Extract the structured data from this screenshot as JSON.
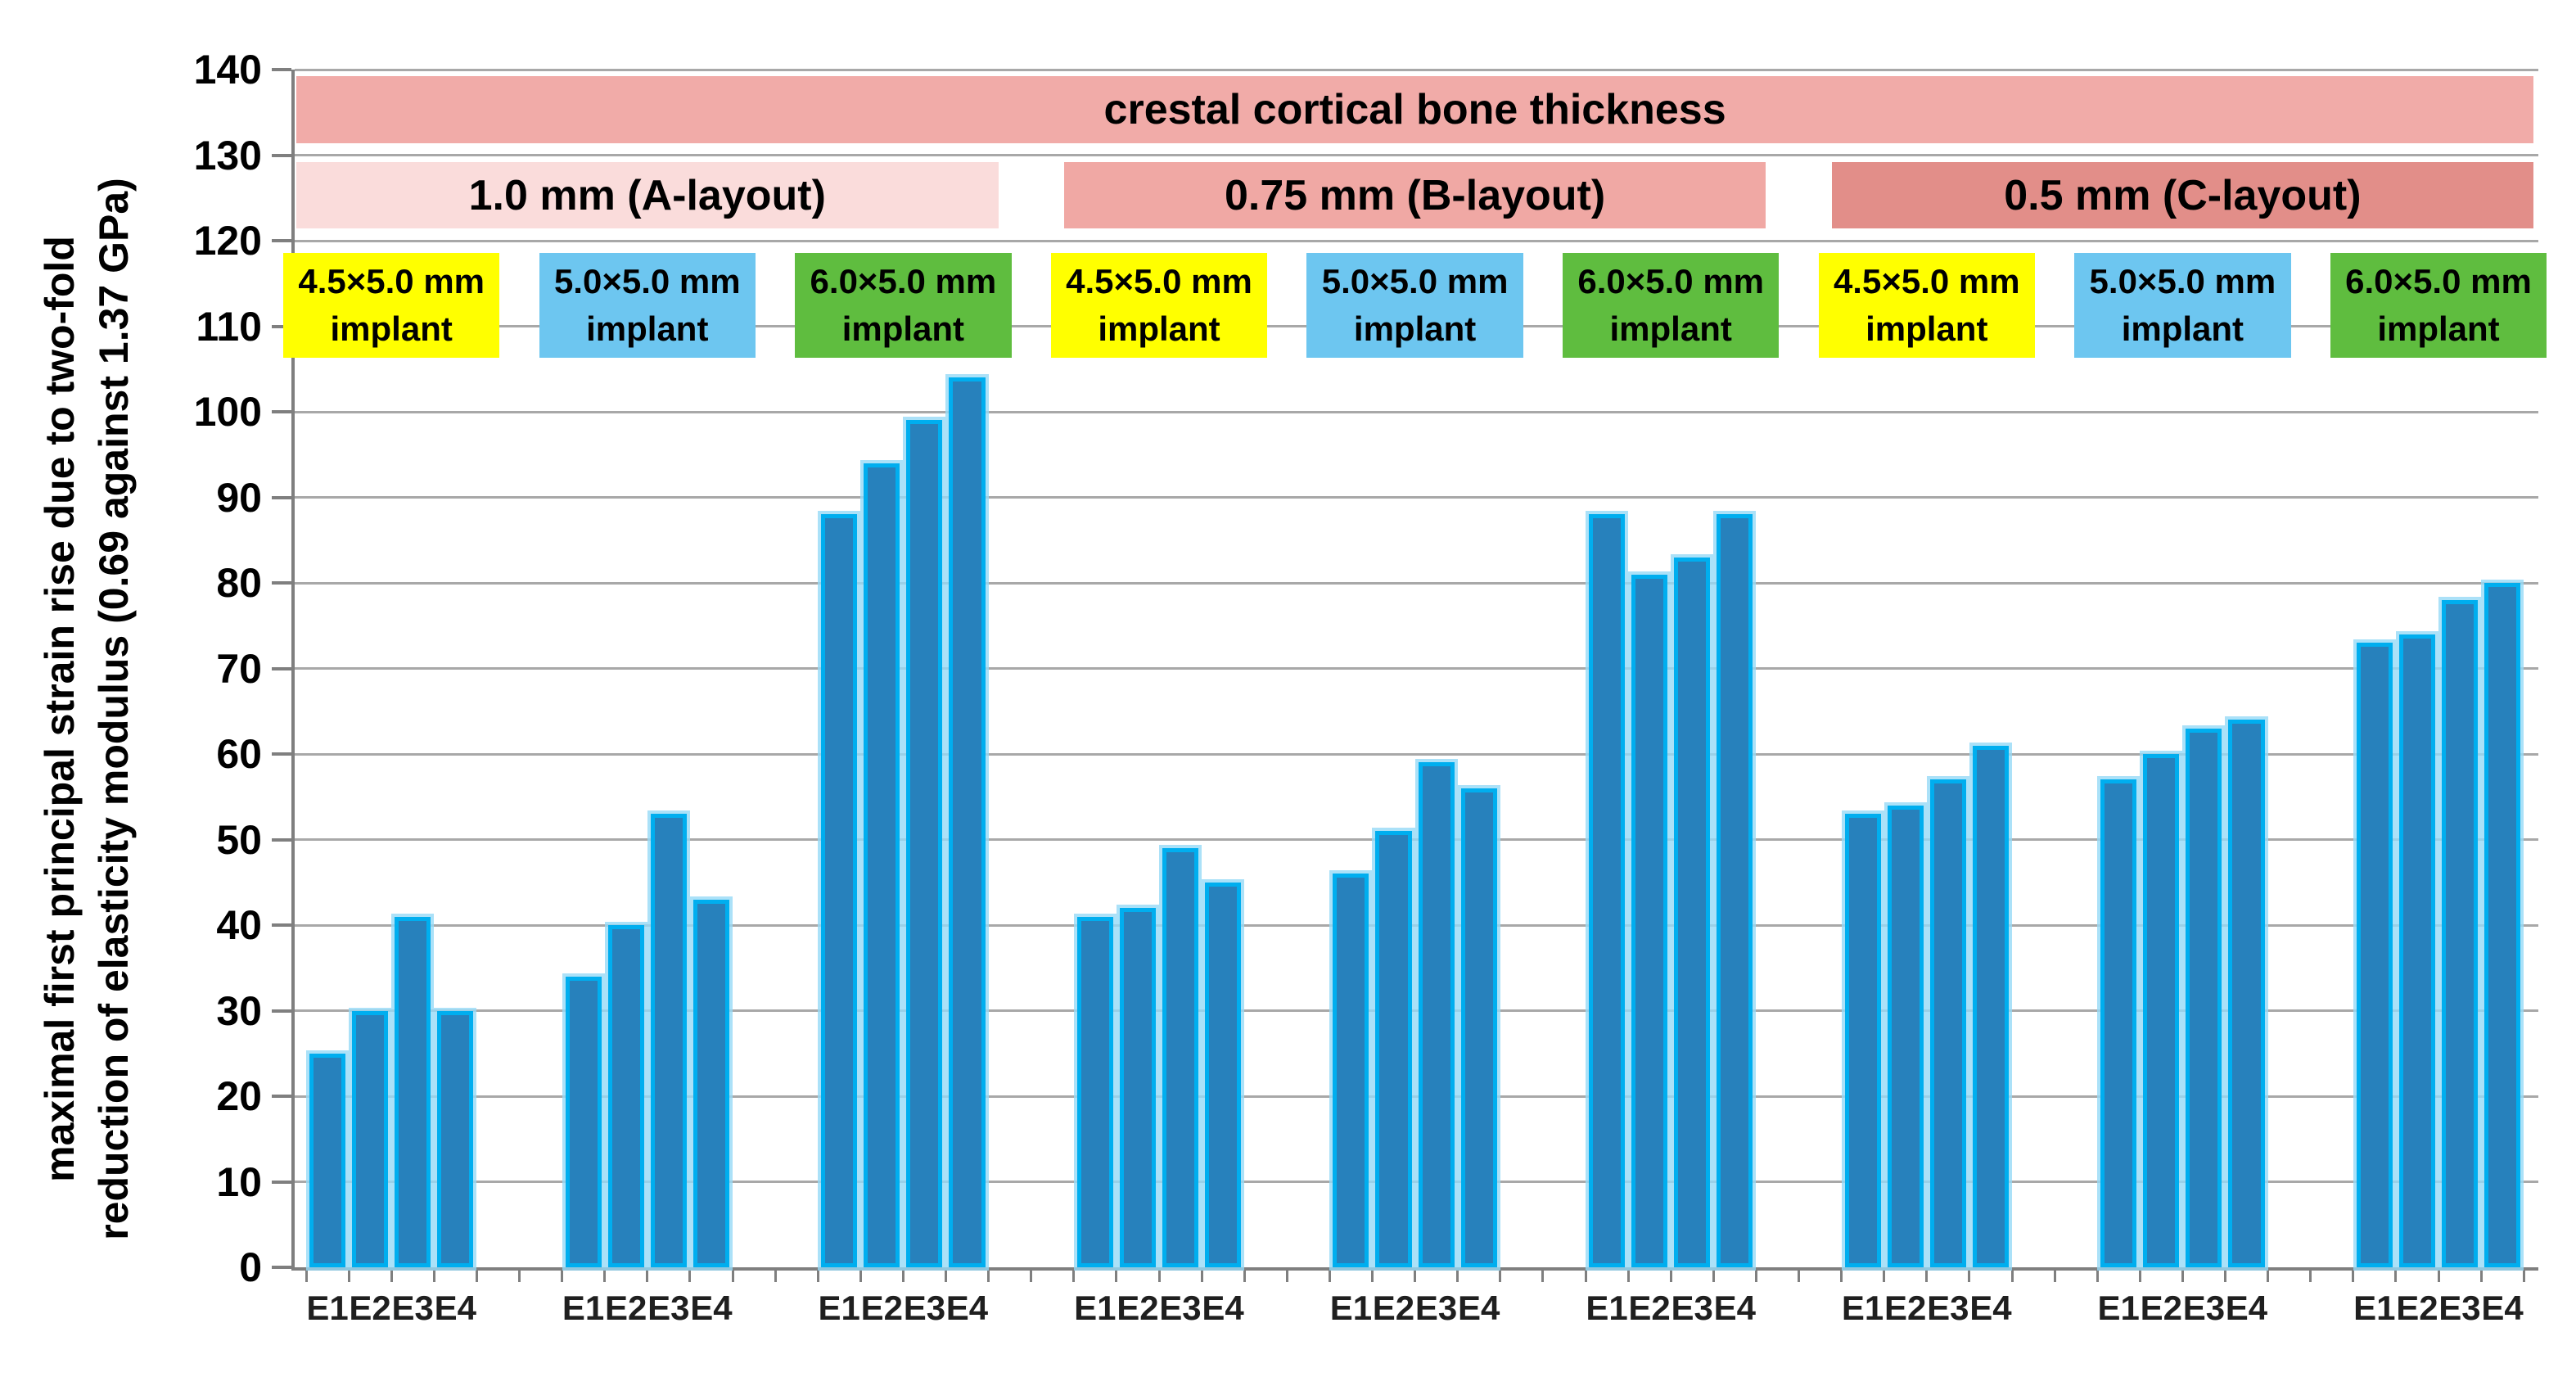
{
  "chart_data": {
    "type": "bar",
    "title_bands": {
      "main": "crestal cortical bone thickness",
      "main_color": "#F1ABA8",
      "sections": [
        {
          "label": "1.0 mm (A-layout)",
          "color": "#FADCDB"
        },
        {
          "label": "0.75 mm (B-layout)",
          "color": "#F0A8A4"
        },
        {
          "label": "0.5 mm (C-layout)",
          "color": "#E28E89"
        }
      ]
    },
    "implant_types": [
      {
        "label_line1": "4.5×5.0 mm",
        "label_line2": "implant",
        "color": "#FFFF00"
      },
      {
        "label_line1": "5.0×5.0 mm",
        "label_line2": "implant",
        "color": "#6DC6F0"
      },
      {
        "label_line1": "6.0×5.0 mm",
        "label_line2": "implant",
        "color": "#5FBD3F"
      }
    ],
    "categories": [
      "E1",
      "E2",
      "E3",
      "E4"
    ],
    "groups": [
      {
        "section": "1.0 mm (A-layout)",
        "implant": "4.5×5.0 mm implant",
        "values": [
          25,
          30,
          41,
          30
        ]
      },
      {
        "section": "1.0 mm (A-layout)",
        "implant": "5.0×5.0 mm implant",
        "values": [
          34,
          40,
          53,
          43
        ]
      },
      {
        "section": "1.0 mm (A-layout)",
        "implant": "6.0×5.0 mm implant",
        "values": [
          88,
          94,
          99,
          104
        ]
      },
      {
        "section": "0.75 mm (B-layout)",
        "implant": "4.5×5.0 mm implant",
        "values": [
          41,
          42,
          49,
          45
        ]
      },
      {
        "section": "0.75 mm (B-layout)",
        "implant": "5.0×5.0 mm implant",
        "values": [
          46,
          51,
          59,
          56
        ]
      },
      {
        "section": "0.75 mm (B-layout)",
        "implant": "6.0×5.0 mm implant",
        "values": [
          88,
          81,
          83,
          88
        ]
      },
      {
        "section": "0.5 mm (C-layout)",
        "implant": "4.5×5.0 mm implant",
        "values": [
          53,
          54,
          57,
          61
        ]
      },
      {
        "section": "0.5 mm (C-layout)",
        "implant": "5.0×5.0 mm implant",
        "values": [
          57,
          60,
          63,
          64
        ]
      },
      {
        "section": "0.5 mm (C-layout)",
        "implant": "6.0×5.0 mm implant",
        "values": [
          73,
          74,
          78,
          80
        ]
      }
    ],
    "ylabel_line1": "maximal first principal strain rise due to two-fold",
    "ylabel_line2": "reduction of elasticity modulus (0.69 against 1.37 GPa)",
    "ylim": [
      0,
      140
    ],
    "ytick_step": 10,
    "grid": true,
    "legend_position": "none",
    "bar_color": "#2781BC",
    "bar_border_color": "#00AEEF",
    "grid_color": "#A8A8A8",
    "axis_color": "#7F7F7F"
  }
}
